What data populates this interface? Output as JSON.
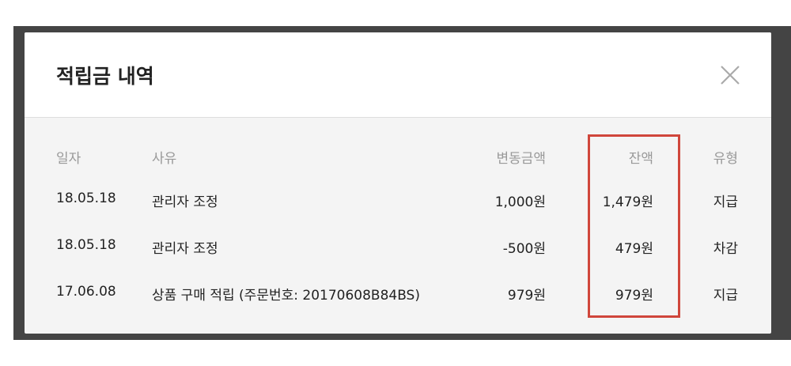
{
  "modal": {
    "title": "적립금 내역",
    "close_icon": "close-icon",
    "columns": {
      "date": "일자",
      "reason": "사유",
      "amount": "변동금액",
      "balance": "잔액",
      "type": "유형"
    },
    "rows": [
      {
        "date": "18.05.18",
        "reason": "관리자 조정",
        "amount": "1,000원",
        "balance": "1,479원",
        "type": "지급"
      },
      {
        "date": "18.05.18",
        "reason": "관리자 조정",
        "amount": "-500원",
        "balance": "479원",
        "type": "차감"
      },
      {
        "date": "17.06.08",
        "reason": "상품 구매 적립 (주문번호: 20170608B84BS)",
        "amount": "979원",
        "balance": "979원",
        "type": "지급"
      }
    ],
    "highlight_color": "#d0463b"
  }
}
